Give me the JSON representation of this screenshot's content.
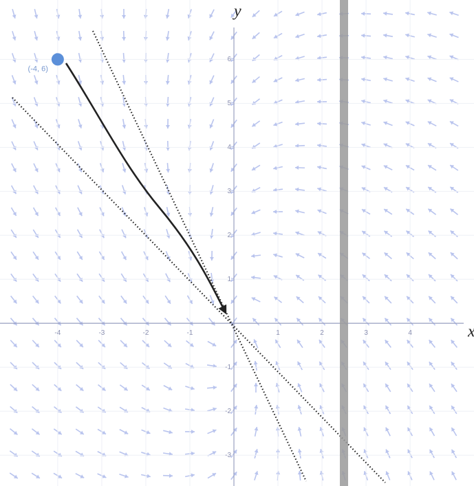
{
  "chart_data": {
    "type": "scatter",
    "x_label": "x",
    "y_label": "y",
    "xlim": [
      -5.31,
      5.45
    ],
    "ylim": [
      -3.7,
      7.35
    ],
    "xticks": [
      -4,
      -3,
      -2,
      -1,
      1,
      2,
      3,
      4
    ],
    "yticks": [
      -3,
      -2,
      -1,
      1,
      2,
      3,
      4,
      5,
      6
    ],
    "grid": true,
    "series": [
      {
        "color": "#5b8fd9",
        "x": [
          -4
        ],
        "y": [
          6
        ],
        "point_labels": [
          "(-4, 6)"
        ]
      }
    ]
  }
}
